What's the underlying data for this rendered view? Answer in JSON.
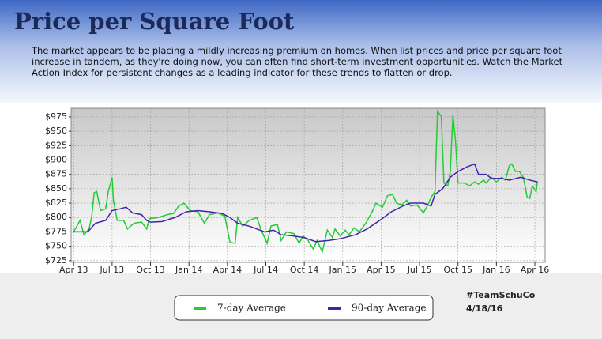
{
  "header": {
    "title": "Price per Square Foot",
    "description": "The market appears to be placing a mildly increasing premium on homes. When list prices and price per square foot increase in tandem, as they're doing now, you can often find short-term investment opportunities. Watch the Market Action Index for persistent changes as a leading indicator for these trends to flatten or drop."
  },
  "chart_data": {
    "type": "line",
    "xlim": [
      -0.2,
      36.8
    ],
    "ylim": [
      722,
      990
    ],
    "xticks": [
      {
        "value": 0,
        "label": "Apr 13"
      },
      {
        "value": 3,
        "label": "Jul 13"
      },
      {
        "value": 6,
        "label": "Oct 13"
      },
      {
        "value": 9,
        "label": "Jan 14"
      },
      {
        "value": 12,
        "label": "Apr 14"
      },
      {
        "value": 15,
        "label": "Jul 14"
      },
      {
        "value": 18,
        "label": "Oct 14"
      },
      {
        "value": 21,
        "label": "Jan 15"
      },
      {
        "value": 24,
        "label": "Apr 15"
      },
      {
        "value": 27,
        "label": "Jul 15"
      },
      {
        "value": 30,
        "label": "Oct 15"
      },
      {
        "value": 33,
        "label": "Jan 16"
      },
      {
        "value": 36,
        "label": "Apr 16"
      }
    ],
    "yticks": [
      {
        "value": 725,
        "label": "$725"
      },
      {
        "value": 750,
        "label": "$750"
      },
      {
        "value": 775,
        "label": "$775"
      },
      {
        "value": 800,
        "label": "$800"
      },
      {
        "value": 825,
        "label": "$825"
      },
      {
        "value": 850,
        "label": "$850"
      },
      {
        "value": 875,
        "label": "$875"
      },
      {
        "value": 900,
        "label": "$900"
      },
      {
        "value": 925,
        "label": "$925"
      },
      {
        "value": 950,
        "label": "$950"
      },
      {
        "value": 975,
        "label": "$975"
      }
    ],
    "grid": true,
    "series": [
      {
        "name": "7-day Average",
        "color": "#22cc33",
        "x": [
          0,
          0.5,
          0.8,
          1.2,
          1.4,
          1.6,
          1.8,
          2.1,
          2.5,
          2.7,
          3.0,
          3.1,
          3.4,
          3.9,
          4.2,
          4.7,
          5.3,
          5.7,
          5.9,
          6.6,
          7.3,
          7.8,
          8.2,
          8.6,
          9.1,
          9.7,
          10.2,
          10.6,
          11.3,
          11.8,
          12.2,
          12.6,
          12.8,
          13.2,
          13.7,
          14.3,
          14.6,
          15.1,
          15.4,
          15.9,
          16.2,
          16.6,
          17.2,
          17.6,
          17.9,
          18.3,
          18.7,
          19.0,
          19.4,
          19.8,
          20.2,
          20.4,
          20.8,
          21.2,
          21.5,
          21.9,
          22.3,
          22.8,
          23.3,
          23.6,
          24.1,
          24.5,
          24.9,
          25.2,
          25.6,
          26.0,
          26.3,
          26.8,
          27.3,
          27.6,
          27.9,
          28.2,
          28.4,
          28.7,
          28.9,
          29.2,
          29.4,
          29.6,
          29.8,
          30.0,
          30.5,
          30.9,
          31.3,
          31.6,
          32.0,
          32.2,
          32.6,
          33.0,
          33.4,
          33.7,
          34.0,
          34.2,
          34.5,
          34.8,
          35.1,
          35.4,
          35.6,
          35.8,
          36.1,
          36.2
        ],
        "values": [
          775,
          795,
          770,
          780,
          800,
          843,
          845,
          812,
          815,
          845,
          870,
          830,
          795,
          795,
          780,
          790,
          792,
          780,
          798,
          800,
          805,
          807,
          820,
          825,
          812,
          810,
          790,
          805,
          808,
          802,
          757,
          755,
          800,
          785,
          795,
          800,
          780,
          755,
          785,
          788,
          760,
          775,
          772,
          755,
          768,
          760,
          745,
          760,
          740,
          778,
          765,
          780,
          768,
          778,
          770,
          782,
          775,
          790,
          810,
          825,
          818,
          838,
          840,
          825,
          822,
          830,
          820,
          822,
          808,
          820,
          835,
          845,
          985,
          975,
          860,
          855,
          880,
          978,
          935,
          860,
          860,
          855,
          862,
          858,
          865,
          860,
          870,
          862,
          870,
          865,
          890,
          893,
          880,
          880,
          870,
          835,
          833,
          855,
          845,
          863
        ]
      },
      {
        "name": "90-day Average",
        "color": "#4422aa",
        "x": [
          0,
          1.1,
          1.7,
          2.5,
          3.0,
          3.6,
          4.1,
          4.6,
          5.3,
          5.7,
          6.0,
          6.9,
          7.9,
          8.8,
          9.7,
          10.6,
          11.6,
          12.2,
          12.8,
          13.7,
          14.3,
          14.9,
          15.6,
          16.2,
          17.1,
          18.0,
          18.9,
          19.9,
          20.8,
          22.0,
          22.9,
          23.9,
          24.8,
          25.7,
          26.3,
          27.3,
          27.9,
          28.2,
          28.8,
          29.4,
          30.0,
          30.7,
          31.3,
          31.6,
          32.2,
          32.6,
          33.4,
          34.0,
          34.9,
          35.6,
          36.2
        ],
        "values": [
          775,
          775,
          790,
          795,
          812,
          815,
          818,
          808,
          805,
          795,
          792,
          793,
          800,
          810,
          812,
          810,
          807,
          800,
          790,
          785,
          780,
          775,
          778,
          770,
          768,
          765,
          758,
          760,
          763,
          770,
          780,
          795,
          810,
          820,
          825,
          825,
          820,
          840,
          850,
          870,
          880,
          888,
          893,
          875,
          875,
          868,
          868,
          865,
          870,
          865,
          862
        ]
      }
    ]
  },
  "footer": {
    "tag": "#TeamSchuCo",
    "date": "4/18/16"
  }
}
